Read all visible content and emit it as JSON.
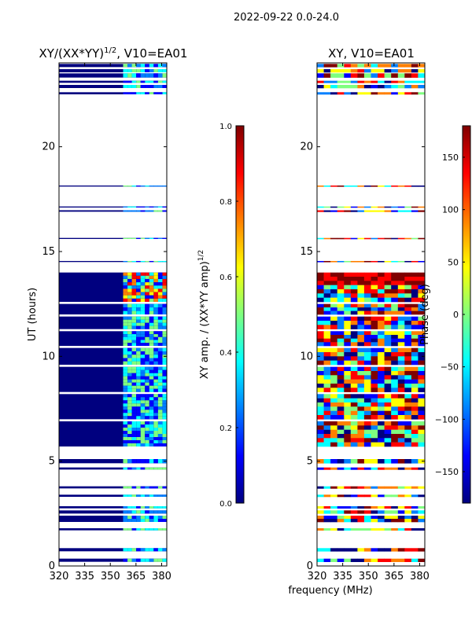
{
  "figure": {
    "suptitle": "2022-09-22 0.0-24.0"
  },
  "colors": {
    "background": "#00008f",
    "fill_blue": "#00007f",
    "jet": [
      "#00007f",
      "#0000ff",
      "#007fff",
      "#00ffff",
      "#7fff7f",
      "#ffff00",
      "#ff7f00",
      "#ff0000",
      "#7f0000"
    ]
  },
  "chart_data": [
    {
      "type": "heatmap",
      "title_main": "XY/(XX*YY)",
      "title_sup": "1/2",
      "title_rest": ", V10=EA01",
      "xlabel": "",
      "ylabel": "UT (hours)",
      "xlim": [
        320,
        383
      ],
      "ylim": [
        0,
        24
      ],
      "xticks": [
        320,
        335,
        350,
        365,
        380
      ],
      "xtick_labels": [
        "320",
        "335",
        "350",
        "365",
        "380"
      ],
      "yticks": [
        0,
        5,
        10,
        15,
        20
      ],
      "ytick_labels": [
        "0",
        "5",
        "10",
        "15",
        "20"
      ],
      "colorbar": {
        "label_main": "XY amp. / (XX*YY amp)",
        "label_sup": "1/2",
        "range": [
          0.0,
          1.0
        ],
        "ticks": [
          0.0,
          0.2,
          0.4,
          0.6,
          0.8,
          1.0
        ],
        "tick_labels": [
          "0.0",
          "0.2",
          "0.4",
          "0.6",
          "0.8",
          "1.0"
        ]
      }
    },
    {
      "type": "heatmap",
      "title_main": "XY, V10=EA01",
      "xlabel": "frequency (MHz)",
      "ylabel": "",
      "xlim": [
        320,
        383
      ],
      "ylim": [
        0,
        24
      ],
      "xticks": [
        320,
        335,
        350,
        365,
        380
      ],
      "xtick_labels": [
        "320",
        "335",
        "350",
        "365",
        "380"
      ],
      "yticks": [
        0,
        5,
        10,
        15,
        20
      ],
      "ytick_labels": [
        "0",
        "5",
        "10",
        "15",
        "20"
      ],
      "colorbar": {
        "label_main": "Phase (deg)",
        "range": [
          -180,
          180
        ],
        "ticks": [
          -150,
          -100,
          -50,
          0,
          50,
          100,
          150
        ],
        "tick_labels": [
          "−150",
          "−100",
          "−50",
          "0",
          "50",
          "100",
          "150"
        ]
      }
    }
  ],
  "data_bands_hours": [
    [
      0.2,
      0.35
    ],
    [
      0.7,
      0.85
    ],
    [
      1.7,
      1.8
    ],
    [
      2.1,
      2.4
    ],
    [
      2.5,
      2.65
    ],
    [
      2.75,
      2.85
    ],
    [
      3.3,
      3.4
    ],
    [
      3.7,
      3.8
    ],
    [
      4.6,
      4.7
    ],
    [
      4.9,
      5.1
    ],
    [
      5.7,
      6.9
    ],
    [
      7.0,
      8.2
    ],
    [
      8.3,
      9.5
    ],
    [
      9.6,
      10.4
    ],
    [
      10.5,
      11.2
    ],
    [
      11.3,
      11.9
    ],
    [
      12.0,
      12.5
    ],
    [
      12.6,
      14.0
    ],
    [
      14.5,
      14.55
    ],
    [
      15.6,
      15.65
    ],
    [
      16.9,
      16.97
    ],
    [
      17.1,
      17.15
    ],
    [
      18.1,
      18.15
    ],
    [
      22.5,
      22.6
    ],
    [
      22.8,
      22.95
    ],
    [
      23.05,
      23.15
    ],
    [
      23.3,
      23.5
    ],
    [
      23.55,
      23.7
    ],
    [
      23.8,
      23.95
    ]
  ],
  "active_channel_mhz": [
    357.5,
    383
  ]
}
